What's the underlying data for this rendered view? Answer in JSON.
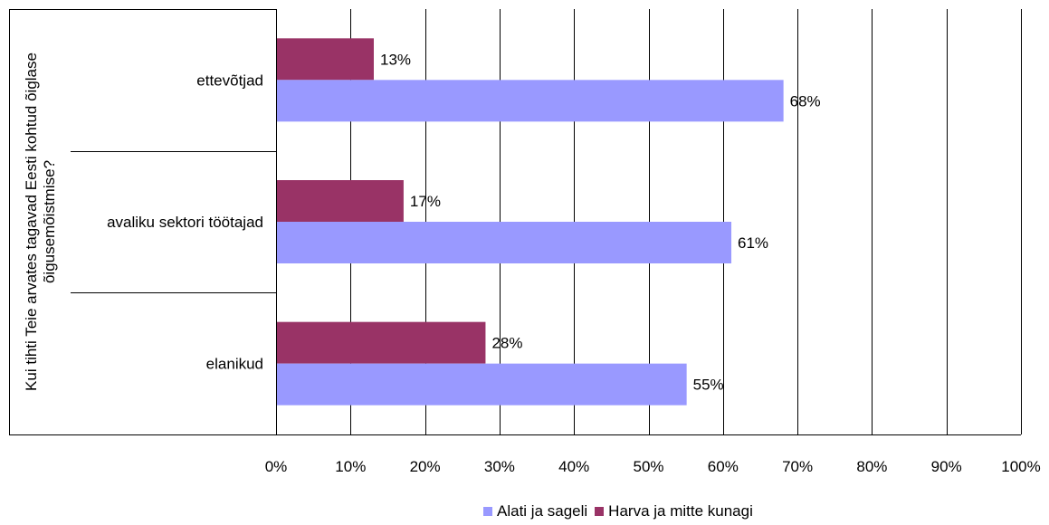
{
  "chart_data": {
    "type": "bar",
    "orientation": "horizontal",
    "categories": [
      "ettevõtjad",
      "avaliku sektori töötajad",
      "elanikud"
    ],
    "series": [
      {
        "name": "Harva ja mitte kunagi",
        "color": "#993366",
        "values": [
          13,
          17,
          28
        ],
        "labels": [
          "13%",
          "17%",
          "28%"
        ]
      },
      {
        "name": "Alati ja sageli",
        "color": "#9999FF",
        "values": [
          68,
          61,
          55
        ],
        "labels": [
          "68%",
          "61%",
          "55%"
        ]
      }
    ],
    "xlim": [
      0,
      100
    ],
    "x_ticks": [
      "0%",
      "10%",
      "20%",
      "30%",
      "40%",
      "50%",
      "60%",
      "70%",
      "80%",
      "90%",
      "100%"
    ],
    "ylabel_lines": [
      "Kui tihti Teie arvates tagavad Eesti kohtud õiglase",
      "õigusemõistmise?"
    ],
    "grid": "vertical",
    "legend_position": "bottom",
    "legend_order": [
      "Alati ja sageli",
      "Harva ja mitte kunagi"
    ]
  }
}
